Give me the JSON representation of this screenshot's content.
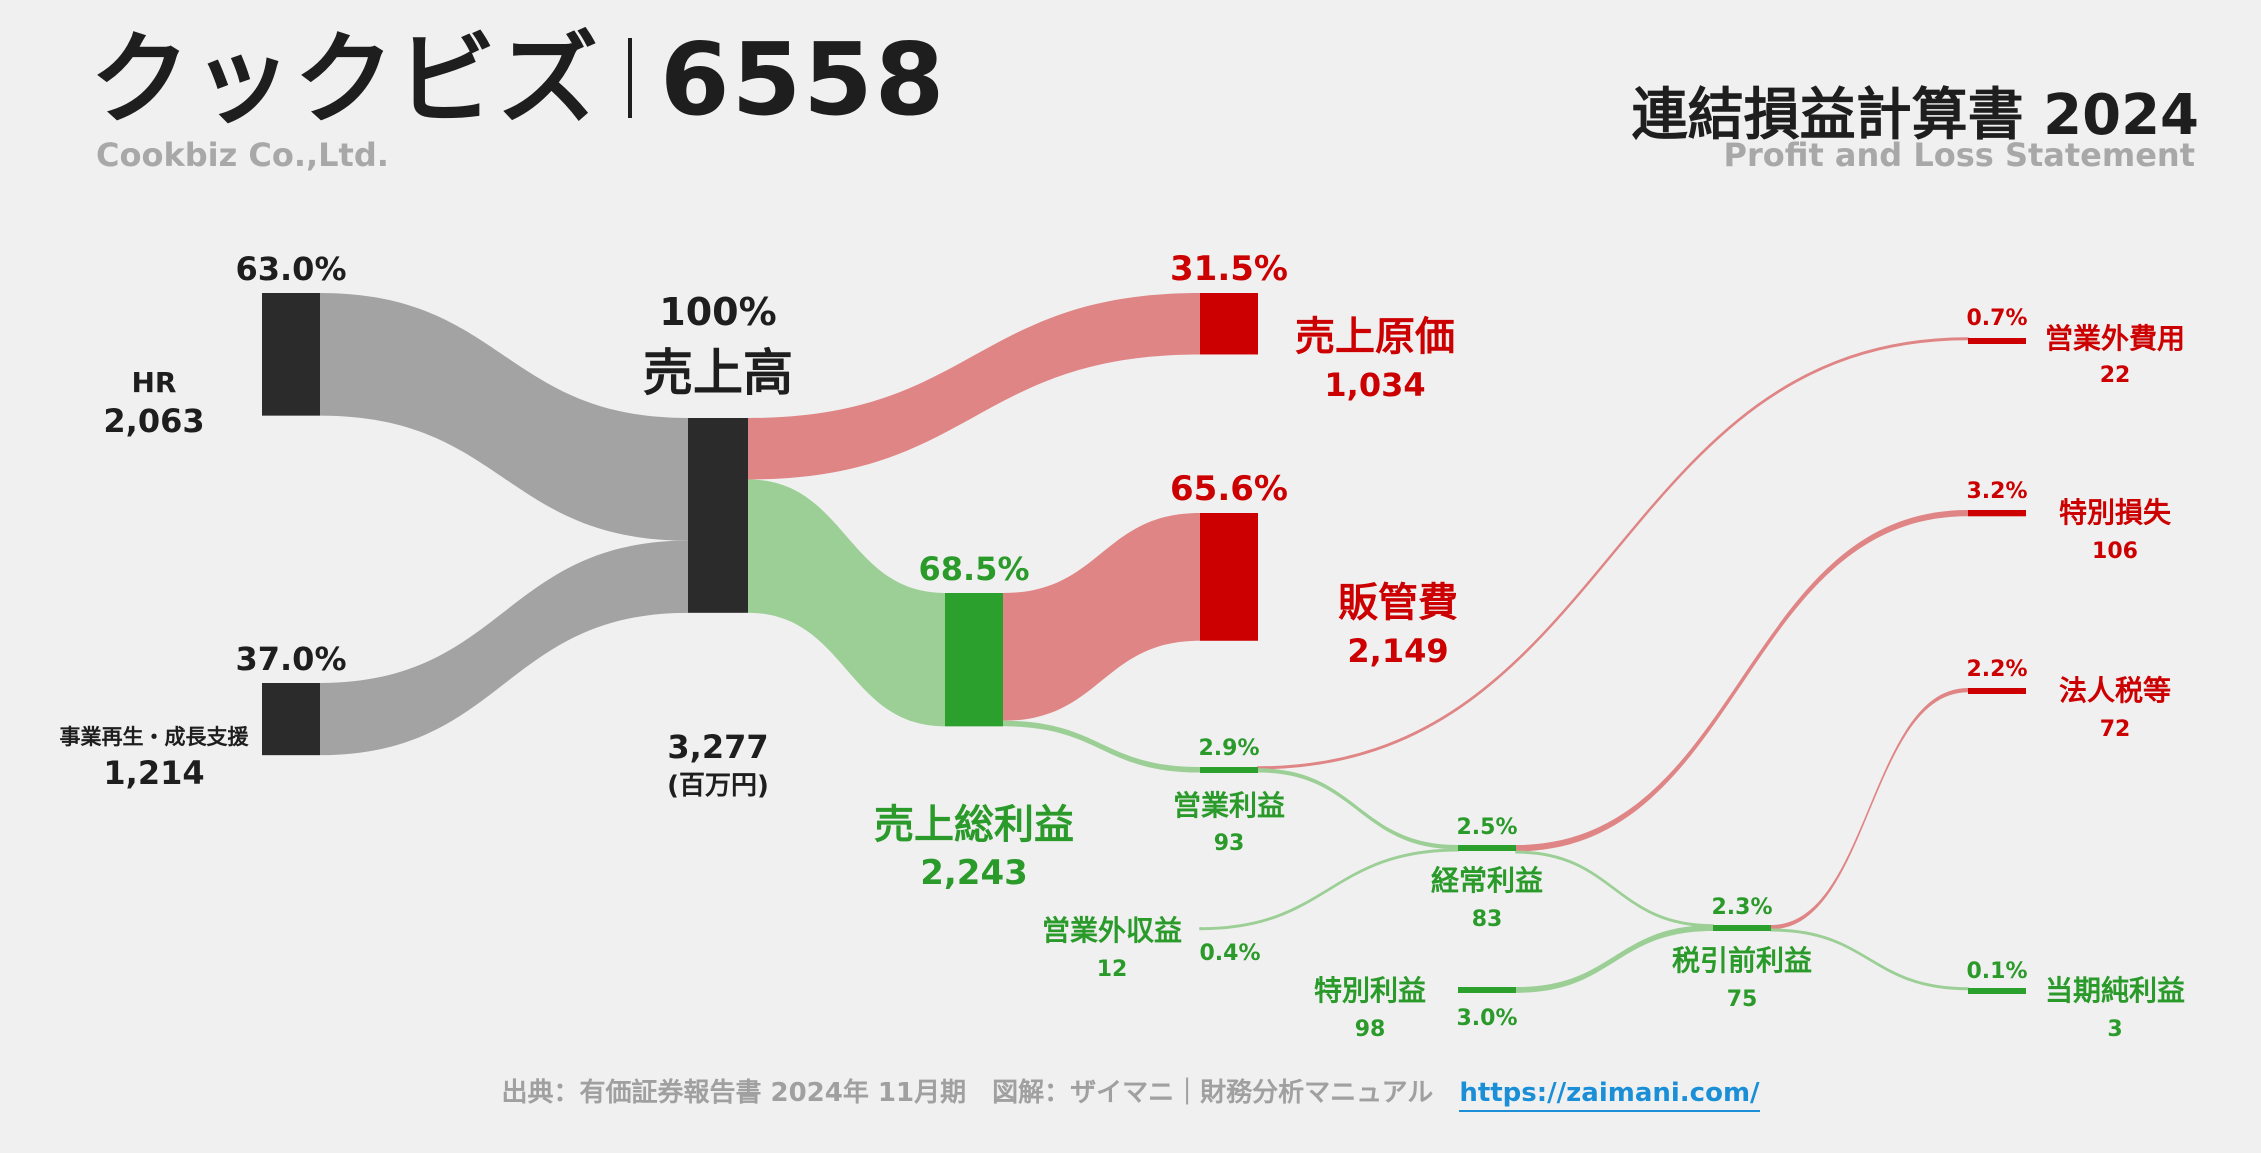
{
  "header": {
    "company_jp": "クックビズ",
    "ticker": "6558",
    "company_en": "Cookbiz Co.,Ltd.",
    "statement_jp": "連結損益計算書 2024",
    "statement_en": "Profit and Loss Statement"
  },
  "footer": {
    "source": "出典：有価証券報告書 2024年 11月期　図解：ザイマニ｜財務分析マニュアル",
    "link": "https://zaimani.com/"
  },
  "colors": {
    "dark_node": "#2b2b2b",
    "gray_flow": "#a3a3a3",
    "red_node": "#cc0000",
    "red_flow": "#e08585",
    "green_node": "#2ca02c",
    "green_flow": "#9ccf96",
    "green_text": "#2a9a2a"
  },
  "chart_data": {
    "type": "sankey",
    "unit": "(百万円)",
    "nodes": [
      {
        "id": "hr",
        "name": "HR",
        "value": 2063,
        "pct": "63.0%"
      },
      {
        "id": "revitalize",
        "name": "事業再生・成長支援",
        "value": 1214,
        "pct": "37.0%"
      },
      {
        "id": "revenue",
        "name": "売上高",
        "value": 3277,
        "pct": "100%"
      },
      {
        "id": "cogs",
        "name": "売上原価",
        "value": 1034,
        "pct": "31.5%"
      },
      {
        "id": "gross",
        "name": "売上総利益",
        "value": 2243,
        "pct": "68.5%"
      },
      {
        "id": "sga",
        "name": "販管費",
        "value": 2149,
        "pct": "65.6%"
      },
      {
        "id": "op",
        "name": "営業利益",
        "value": 93,
        "pct": "2.9%"
      },
      {
        "id": "nonop_inc",
        "name": "営業外収益",
        "value": 12,
        "pct": "0.4%"
      },
      {
        "id": "nonop_exp",
        "name": "営業外費用",
        "value": 22,
        "pct": "0.7%"
      },
      {
        "id": "ordinary",
        "name": "経常利益",
        "value": 83,
        "pct": "2.5%"
      },
      {
        "id": "sp_gain",
        "name": "特別利益",
        "value": 98,
        "pct": "3.0%"
      },
      {
        "id": "sp_loss",
        "name": "特別損失",
        "value": 106,
        "pct": "3.2%"
      },
      {
        "id": "pretax",
        "name": "税引前利益",
        "value": 75,
        "pct": "2.3%"
      },
      {
        "id": "tax",
        "name": "法人税等",
        "value": 72,
        "pct": "2.2%"
      },
      {
        "id": "net",
        "name": "当期純利益",
        "value": 3,
        "pct": "0.1%"
      }
    ],
    "links": [
      {
        "source": "hr",
        "target": "revenue",
        "value": 2063
      },
      {
        "source": "revitalize",
        "target": "revenue",
        "value": 1214
      },
      {
        "source": "revenue",
        "target": "cogs",
        "value": 1034
      },
      {
        "source": "revenue",
        "target": "gross",
        "value": 2243
      },
      {
        "source": "gross",
        "target": "sga",
        "value": 2149
      },
      {
        "source": "gross",
        "target": "op",
        "value": 93
      },
      {
        "source": "op",
        "target": "nonop_exp",
        "value": 22
      },
      {
        "source": "op",
        "target": "ordinary",
        "value": 71
      },
      {
        "source": "nonop_inc",
        "target": "ordinary",
        "value": 12
      },
      {
        "source": "ordinary",
        "target": "sp_loss",
        "value": 106
      },
      {
        "source": "ordinary",
        "target": "pretax",
        "value": 3
      },
      {
        "source": "sp_gain",
        "target": "pretax",
        "value": 98
      },
      {
        "source": "pretax",
        "target": "tax",
        "value": 72
      },
      {
        "source": "pretax",
        "target": "net",
        "value": 3
      }
    ]
  }
}
